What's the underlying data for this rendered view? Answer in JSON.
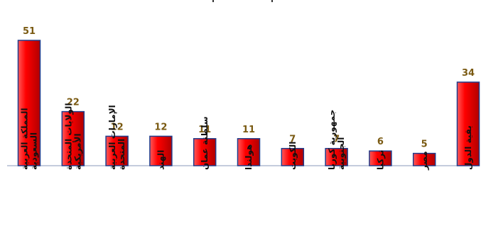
{
  "chart_data": {
    "type": "bar",
    "categories": [
      "المملكة العربية السعودية",
      "الولايات المتحدة الأمريكية",
      "الإمارات العربية المتحدة",
      "الهند",
      "سلطنة عمان",
      "هولندا",
      "الكويت",
      "جمهورية كوريا الجنوبية",
      "تركيا",
      "مصر",
      "بقية الدول"
    ],
    "values": [
      51,
      22,
      12,
      12,
      11,
      11,
      7,
      7,
      6,
      5,
      34
    ],
    "title": "",
    "xlabel": "",
    "ylabel": "",
    "ylim": [
      0,
      51
    ],
    "grid": false,
    "legend": "none",
    "colors": {
      "bar_fill": "#ff0000",
      "bar_highlight": "#ff5a5a",
      "bar_shadow": "#b00000",
      "bar_border": "#1f3c8c",
      "value_label": "#7a5a12",
      "axis": "#8899bb",
      "category_label": "#111111"
    }
  }
}
